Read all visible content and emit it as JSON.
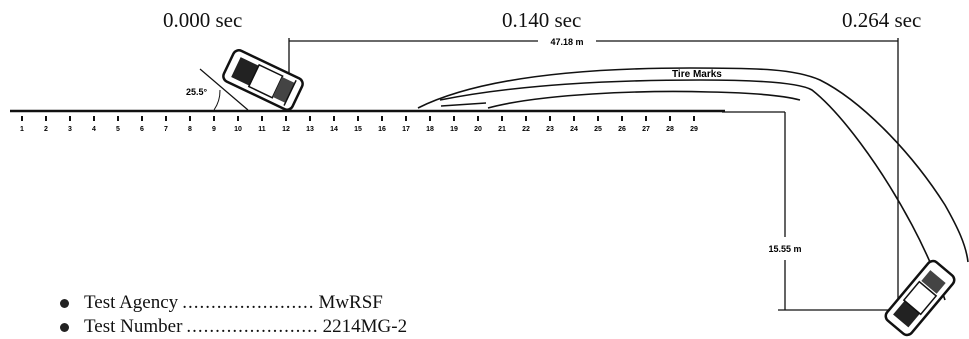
{
  "time_labels": [
    "0.000 sec",
    "0.140 sec",
    "0.264 sec"
  ],
  "dimensions": {
    "longitudinal": "47.18 m",
    "lateral": "15.55 m",
    "impact_angle": "25.5°"
  },
  "annotations": {
    "tire_marks": "Tire Marks"
  },
  "post_numbers": [
    "1",
    "2",
    "3",
    "4",
    "5",
    "6",
    "7",
    "8",
    "9",
    "10",
    "11",
    "12",
    "13",
    "14",
    "15",
    "16",
    "17",
    "18",
    "19",
    "20",
    "21",
    "22",
    "23",
    "24",
    "25",
    "26",
    "27",
    "28",
    "29"
  ],
  "info_rows": [
    {
      "label": "Test Agency",
      "dots": ".......................",
      "value": "MwRSF"
    },
    {
      "label": "Test Number",
      "dots": ".......................",
      "value": "2214MG-2"
    }
  ]
}
